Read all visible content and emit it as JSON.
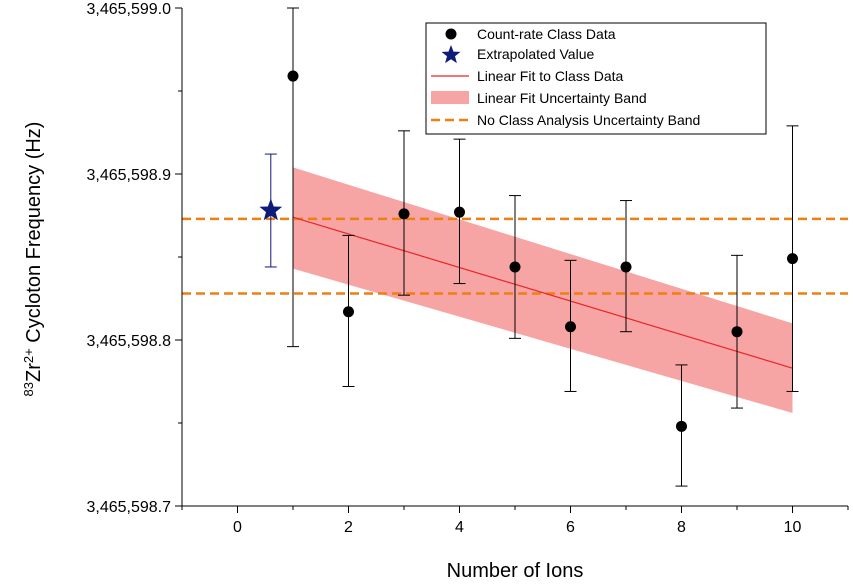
{
  "chart_data": {
    "type": "scatter",
    "xlabel": "Number of Ions",
    "ylabel": {
      "mass_number": "83",
      "element": "Zr",
      "charge": "2+",
      "rest": " Cycloton Frequency (Hz)"
    },
    "xlim": [
      -1,
      11
    ],
    "ylim": [
      3465598.7,
      3465599.0
    ],
    "x_ticks": [
      0,
      2,
      4,
      6,
      8,
      10
    ],
    "x_tick_labels": [
      "0",
      "2",
      "4",
      "6",
      "8",
      "10"
    ],
    "y_ticks": [
      3465598.7,
      3465598.8,
      3465598.9,
      3465599.0
    ],
    "y_tick_labels": [
      "3,465,598.7",
      "3,465,598.8",
      "3,465,598.9",
      "3,465,599.0"
    ],
    "grid": false,
    "legend_position": "top-right",
    "colors": {
      "points": "#000000",
      "star": "#0d1b7a",
      "fit_line": "#e8262a",
      "band": "#f7a4a4",
      "dashed": "#f07f12"
    },
    "series": [
      {
        "name": "Count-rate Class Data",
        "marker": "circle",
        "x": [
          1,
          2,
          3,
          4,
          5,
          6,
          7,
          8,
          9,
          10
        ],
        "y": [
          3465598.959,
          3465598.817,
          3465598.876,
          3465598.877,
          3465598.844,
          3465598.808,
          3465598.844,
          3465598.748,
          3465598.805,
          3465598.849
        ],
        "yerr_low": [
          3465598.796,
          3465598.772,
          3465598.827,
          3465598.834,
          3465598.801,
          3465598.769,
          3465598.805,
          3465598.712,
          3465598.759,
          3465598.769
        ],
        "yerr_high": [
          3465599.0,
          3465598.863,
          3465598.926,
          3465598.921,
          3465598.887,
          3465598.848,
          3465598.884,
          3465598.785,
          3465598.851,
          3465598.929
        ]
      },
      {
        "name": "Extrapolated Value",
        "marker": "star",
        "x": [
          0.6
        ],
        "y": [
          3465598.878
        ],
        "yerr_low": [
          3465598.844
        ],
        "yerr_high": [
          3465598.912
        ]
      },
      {
        "name": "Linear Fit to Class Data",
        "type": "line",
        "x": [
          1,
          10
        ],
        "y": [
          3465598.874,
          3465598.783
        ]
      },
      {
        "name": "Linear Fit Uncertainty Band",
        "type": "band",
        "x": [
          1,
          10
        ],
        "lower": [
          3465598.843,
          3465598.756
        ],
        "upper": [
          3465598.904,
          3465598.81
        ]
      },
      {
        "name": "No Class Analysis Uncertainty Band",
        "type": "hlines",
        "y": [
          3465598.873,
          3465598.828
        ]
      }
    ],
    "legend": [
      "Count-rate Class Data",
      "Extrapolated Value",
      "Linear Fit to Class Data",
      "Linear Fit Uncertainty Band",
      "No Class Analysis Uncertainty Band"
    ]
  }
}
